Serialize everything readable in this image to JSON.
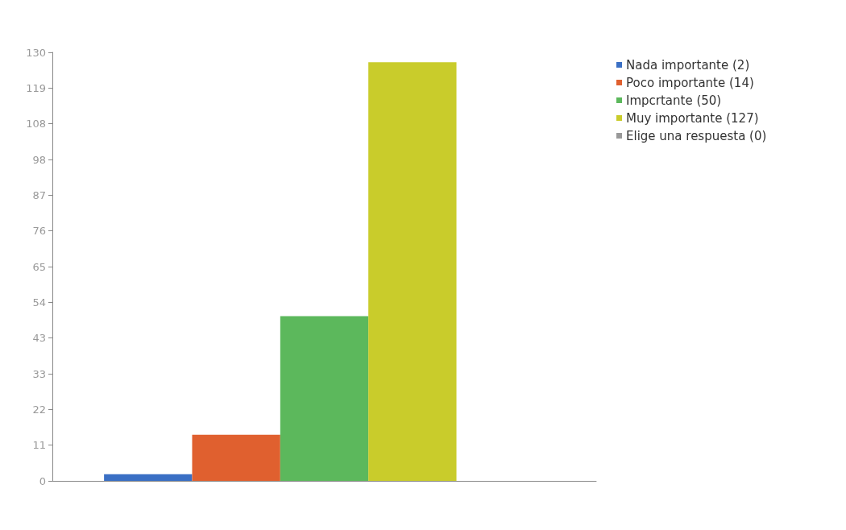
{
  "chart_data": {
    "type": "bar",
    "categories": [
      null
    ],
    "series": [
      {
        "name": "Nada importante (2)",
        "color": "#3a6fc4",
        "values": [
          2
        ]
      },
      {
        "name": "Poco importante (14)",
        "color": "#e0602f",
        "values": [
          14
        ]
      },
      {
        "name": "Impcrtante (50)",
        "color": "#5cb85c",
        "values": [
          50
        ]
      },
      {
        "name": "Muy importante (127)",
        "color": "#c9cc2b",
        "values": [
          127
        ]
      },
      {
        "name": "Elige una respuesta (0)",
        "color": "#999999",
        "values": [
          0
        ]
      }
    ],
    "ylim": [
      0,
      130
    ],
    "yticks": [
      0,
      {
        "value": 10.833,
        "label": "11"
      },
      {
        "value": 21.667,
        "label": "22"
      },
      {
        "value": 32.5,
        "label": "33"
      },
      {
        "value": 43.333,
        "label": "43"
      },
      {
        "value": 54.167,
        "label": "54"
      },
      65,
      {
        "value": 75.833,
        "label": "76"
      },
      {
        "value": 86.667,
        "label": "87"
      },
      {
        "value": 97.5,
        "label": "98"
      },
      {
        "value": 108.333,
        "label": "108"
      },
      {
        "value": 119.167,
        "label": "119"
      },
      130
    ],
    "grid": false,
    "legend": "top right"
  }
}
